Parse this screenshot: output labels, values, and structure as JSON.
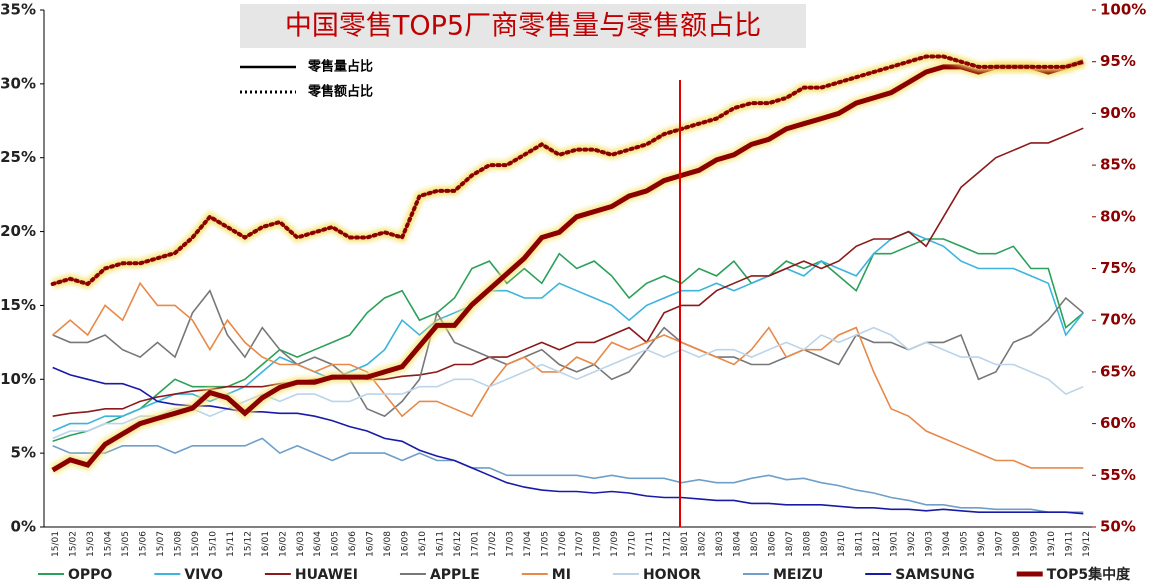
{
  "chart_data": {
    "type": "line",
    "title": "中国零售TOP5厂商零售量与零售额占比",
    "line_style_legend": [
      {
        "label": "零售量占比",
        "style": "solid"
      },
      {
        "label": "零售额占比",
        "style": "dotted"
      }
    ],
    "categories": [
      "15/01",
      "15/02",
      "15/03",
      "15/04",
      "15/05",
      "15/06",
      "15/07",
      "15/08",
      "15/09",
      "15/10",
      "15/11",
      "15/12",
      "16/01",
      "16/02",
      "16/03",
      "16/04",
      "16/05",
      "16/06",
      "16/07",
      "16/08",
      "16/09",
      "16/10",
      "16/11",
      "16/12",
      "17/01",
      "17/02",
      "17/03",
      "17/04",
      "17/05",
      "17/06",
      "17/07",
      "17/08",
      "17/09",
      "17/10",
      "17/11",
      "17/12",
      "18/01",
      "18/02",
      "18/03",
      "18/04",
      "18/05",
      "18/06",
      "18/07",
      "18/08",
      "18/09",
      "18/10",
      "18/11",
      "18/12",
      "19/01",
      "19/02",
      "19/03",
      "19/04",
      "19/05",
      "19/06",
      "19/07",
      "19/08",
      "19/09",
      "19/10",
      "19/11",
      "19/12"
    ],
    "ylim": [
      0,
      35
    ],
    "yticks": [
      {
        "value": 0,
        "label": "0%"
      },
      {
        "value": 5,
        "label": "5%"
      },
      {
        "value": 10,
        "label": "10%"
      },
      {
        "value": 15,
        "label": "15%"
      },
      {
        "value": 20,
        "label": "20%"
      },
      {
        "value": 25,
        "label": "25%"
      },
      {
        "value": 30,
        "label": "30%"
      },
      {
        "value": 35,
        "label": "35%"
      }
    ],
    "y2lim": [
      50,
      100
    ],
    "y2ticks": [
      {
        "value": 50,
        "label": "50%"
      },
      {
        "value": 55,
        "label": "55%"
      },
      {
        "value": 60,
        "label": "60%"
      },
      {
        "value": 65,
        "label": "65%"
      },
      {
        "value": 70,
        "label": "70%"
      },
      {
        "value": 75,
        "label": "75%"
      },
      {
        "value": 80,
        "label": "80%"
      },
      {
        "value": 85,
        "label": "85%"
      },
      {
        "value": 90,
        "label": "90%"
      },
      {
        "value": 95,
        "label": "95%"
      },
      {
        "value": 100,
        "label": "100%"
      }
    ],
    "series": [
      {
        "name": "OPPO",
        "color": "#2ca05a",
        "values": [
          5.8,
          6.2,
          6.5,
          7,
          7.5,
          8,
          9,
          10,
          9.5,
          9.5,
          9.5,
          10,
          11,
          12,
          11.5,
          12,
          12.5,
          13,
          14.5,
          15.5,
          16,
          14,
          14.5,
          15.5,
          17.5,
          18,
          16.5,
          17.5,
          16.5,
          18.5,
          17.5,
          18,
          17,
          15.5,
          16.5,
          17,
          16.5,
          17.5,
          17,
          18,
          16.5,
          17,
          18,
          17.5,
          18,
          17,
          16,
          18.5,
          18.5,
          19,
          19.5,
          19.5,
          19,
          18.5,
          18.5,
          19,
          17.5,
          17.5,
          13.5,
          14.5
        ]
      },
      {
        "name": "VIVO",
        "color": "#3cb4dc",
        "values": [
          6.5,
          7,
          7,
          7.5,
          7.5,
          8,
          8.5,
          9,
          9,
          8.5,
          9,
          9.5,
          10.5,
          11.5,
          11,
          10.5,
          10,
          10.5,
          11,
          12,
          14,
          13,
          14,
          14.5,
          15,
          16,
          16,
          15.5,
          15.5,
          16.5,
          16,
          15.5,
          15,
          14,
          15,
          15.5,
          16,
          16,
          16.5,
          16,
          16.5,
          17,
          17.5,
          17,
          18,
          17.5,
          17,
          18.5,
          19.5,
          20,
          19.5,
          19,
          18,
          17.5,
          17.5,
          17.5,
          17,
          16.5,
          13,
          14.5
        ]
      },
      {
        "name": "HUAWEI",
        "color": "#8b1a1a",
        "values": [
          7.5,
          7.7,
          7.8,
          8,
          8,
          8.5,
          8.8,
          9,
          9.2,
          9.3,
          9.5,
          9.5,
          9.5,
          9.7,
          9.8,
          10,
          10,
          10.2,
          10,
          10,
          10.2,
          10.3,
          10.5,
          11,
          11,
          11.5,
          11.5,
          12,
          12.5,
          12,
          12.5,
          12.5,
          13,
          13.5,
          12.5,
          14.5,
          15,
          15,
          16,
          16.5,
          17,
          17,
          17.5,
          18,
          17.5,
          18,
          19,
          19.5,
          19.5,
          20,
          19,
          21,
          23,
          24,
          25,
          25.5,
          26,
          26,
          26.5,
          27
        ]
      },
      {
        "name": "APPLE",
        "color": "#777777",
        "values": [
          13,
          12.5,
          12.5,
          13,
          12,
          11.5,
          12.5,
          11.5,
          14.5,
          16,
          13,
          11.5,
          13.5,
          12,
          11,
          11.5,
          11,
          10,
          8,
          7.5,
          8.5,
          10,
          14.5,
          12.5,
          12,
          11.5,
          11,
          11.5,
          12,
          11,
          10.5,
          11,
          10,
          10.5,
          12,
          13.5,
          12.5,
          12,
          11.5,
          11.5,
          11,
          11,
          11.5,
          12,
          11.5,
          11,
          13,
          12.5,
          12.5,
          12,
          12.5,
          12.5,
          13,
          10,
          10.5,
          12.5,
          13,
          14,
          15.5,
          14.5
        ]
      },
      {
        "name": "MI",
        "color": "#e8894a",
        "values": [
          13,
          14,
          13,
          15,
          14,
          16.5,
          15,
          15,
          14,
          12,
          14,
          12.5,
          11.5,
          11,
          11,
          10.5,
          11,
          11,
          10.5,
          9,
          7.5,
          8.5,
          8.5,
          8,
          7.5,
          9.5,
          11,
          11.5,
          10.5,
          10.5,
          11.5,
          11,
          12.5,
          12,
          12.5,
          13,
          12.5,
          12,
          11.5,
          11,
          12,
          13.5,
          11.5,
          12,
          12,
          13,
          13.5,
          10.5,
          8,
          7.5,
          6.5,
          6,
          5.5,
          5,
          4.5,
          4.5,
          4,
          4,
          4,
          4
        ]
      },
      {
        "name": "HONOR",
        "color": "#bcd4ea",
        "values": [
          6,
          6.5,
          6.5,
          7,
          7,
          7.5,
          7.5,
          8,
          8,
          7.5,
          8,
          8.5,
          9,
          8.5,
          9,
          9,
          8.5,
          8.5,
          9,
          9,
          9,
          9.5,
          9.5,
          10,
          10,
          9.5,
          10,
          10.5,
          11,
          10.5,
          10,
          10.5,
          11,
          11.5,
          12,
          11.5,
          12,
          11.5,
          12,
          12,
          11.5,
          12,
          12.5,
          12,
          13,
          12.5,
          13,
          13.5,
          13,
          12,
          12.5,
          12,
          11.5,
          11.5,
          11,
          11,
          10.5,
          10,
          9,
          9.5
        ]
      },
      {
        "name": "MEIZU",
        "color": "#6f9fc8",
        "values": [
          5.5,
          5,
          5,
          5,
          5.5,
          5.5,
          5.5,
          5,
          5.5,
          5.5,
          5.5,
          5.5,
          6,
          5,
          5.5,
          5,
          4.5,
          5,
          5,
          5,
          4.5,
          5,
          4.5,
          4.5,
          4,
          4,
          3.5,
          3.5,
          3.5,
          3.5,
          3.5,
          3.3,
          3.5,
          3.3,
          3.3,
          3.3,
          3,
          3.2,
          3,
          3,
          3.3,
          3.5,
          3.2,
          3.3,
          3,
          2.8,
          2.5,
          2.3,
          2,
          1.8,
          1.5,
          1.5,
          1.3,
          1.3,
          1.2,
          1.2,
          1.2,
          1,
          1,
          1
        ]
      },
      {
        "name": "SAMSUNG",
        "color": "#1a1aa8",
        "values": [
          10.8,
          10.3,
          10,
          9.7,
          9.7,
          9.3,
          8.5,
          8.3,
          8.2,
          8.2,
          8,
          7.8,
          7.8,
          7.7,
          7.7,
          7.5,
          7.2,
          6.8,
          6.5,
          6,
          5.8,
          5.2,
          4.8,
          4.5,
          4,
          3.5,
          3,
          2.7,
          2.5,
          2.4,
          2.4,
          2.3,
          2.4,
          2.3,
          2.1,
          2,
          2,
          1.9,
          1.8,
          1.8,
          1.6,
          1.6,
          1.5,
          1.5,
          1.5,
          1.4,
          1.3,
          1.3,
          1.2,
          1.2,
          1.1,
          1.2,
          1.1,
          1,
          1,
          1,
          1,
          1,
          1,
          0.9
        ]
      },
      {
        "name": "TOP5集中度",
        "color": "#8b0000",
        "axis": "y2",
        "style": "solid",
        "values": [
          55.5,
          56.5,
          56,
          58,
          59,
          60,
          60.5,
          61,
          61.5,
          63,
          62.5,
          61,
          62.5,
          63.5,
          64,
          64,
          64.5,
          64.5,
          64.5,
          65,
          65.5,
          67.5,
          69.5,
          69.5,
          71.5,
          73,
          74.5,
          76,
          78,
          78.5,
          80,
          80.5,
          81,
          82,
          82.5,
          83.5,
          84,
          84.5,
          85.5,
          86,
          87,
          87.5,
          88.5,
          89,
          89.5,
          90,
          91,
          91.5,
          92,
          93,
          94,
          94.5,
          94.5,
          94,
          94.5,
          94.5,
          94.5,
          94,
          94.5,
          95
        ]
      },
      {
        "color": "#8b0000",
        "axis": "y2",
        "style": "dotted",
        "values": [
          73.5,
          74,
          73.5,
          75,
          75.5,
          75.5,
          76,
          76.5,
          78,
          80,
          79,
          78,
          79,
          79.5,
          78,
          78.5,
          79,
          78,
          78,
          78.5,
          78,
          82,
          82.5,
          82.5,
          84,
          85,
          85,
          86,
          87,
          86,
          86.5,
          86.5,
          86,
          86.5,
          87,
          88,
          88.5,
          89,
          89.5,
          90.5,
          91,
          91,
          91.5,
          92.5,
          92.5,
          93,
          93.5,
          94,
          94.5,
          95,
          95.5,
          95.5,
          95,
          94.5,
          94.5,
          94.5,
          94.5,
          94.5,
          94.5,
          95
        ]
      }
    ]
  }
}
